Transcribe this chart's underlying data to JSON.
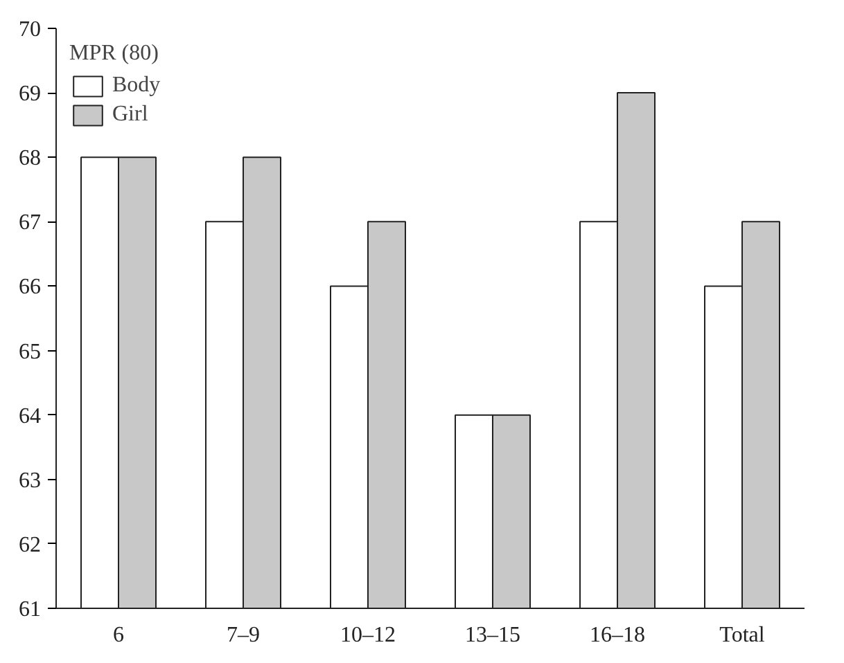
{
  "chart_data": {
    "type": "bar",
    "legend_title": "MPR (80)",
    "categories": [
      "6",
      "7–9",
      "10–12",
      "13–15",
      "16–18",
      "Total"
    ],
    "series": [
      {
        "name": "Body",
        "color": "#ffffff",
        "values": [
          68,
          67,
          66,
          64,
          67,
          66
        ]
      },
      {
        "name": "Girl",
        "color": "#c8c8c8",
        "values": [
          68,
          68,
          67,
          64,
          69,
          67
        ]
      }
    ],
    "ylim": [
      61,
      70
    ],
    "yticks": [
      61,
      62,
      63,
      64,
      65,
      66,
      67,
      68,
      69,
      70
    ],
    "grid": false,
    "legend": "top left"
  }
}
